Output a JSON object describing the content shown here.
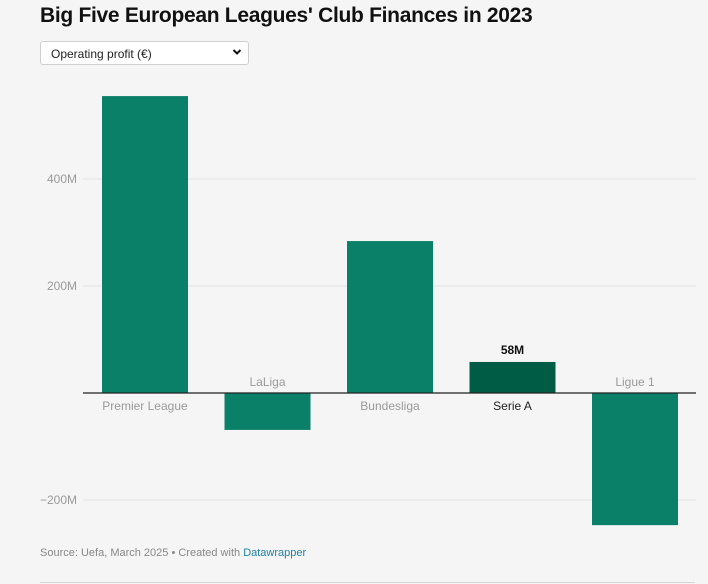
{
  "header": {
    "title": "Big Five European Leagues' Club Finances in 2023",
    "select_value": "Operating profit (€)",
    "select_icon": "chevron-down-icon"
  },
  "footer": {
    "source": "Source: Uefa, March 2025 • Created with ",
    "link": "Datawrapper",
    "link_color": "#1d81a2"
  },
  "chart_data": {
    "type": "bar",
    "title": "Big Five European Leagues' Club Finances in 2023",
    "xlabel": "",
    "ylabel": "",
    "categories": [
      "Premier League",
      "LaLiga",
      "Bundesliga",
      "Serie A",
      "Ligue 1"
    ],
    "values": [
      555,
      -69,
      284,
      58,
      -247
    ],
    "unit": "M",
    "highlight": "Serie A",
    "highlight_label": "58M",
    "ylim": [
      -260,
      560
    ],
    "yticks": [
      -200,
      200,
      400
    ],
    "ytick_labels": [
      "−200M",
      "200M",
      "400M"
    ],
    "grid": true,
    "colors": {
      "bar": "#0b8068",
      "highlight": "#005c45",
      "axis": "#222222"
    }
  }
}
